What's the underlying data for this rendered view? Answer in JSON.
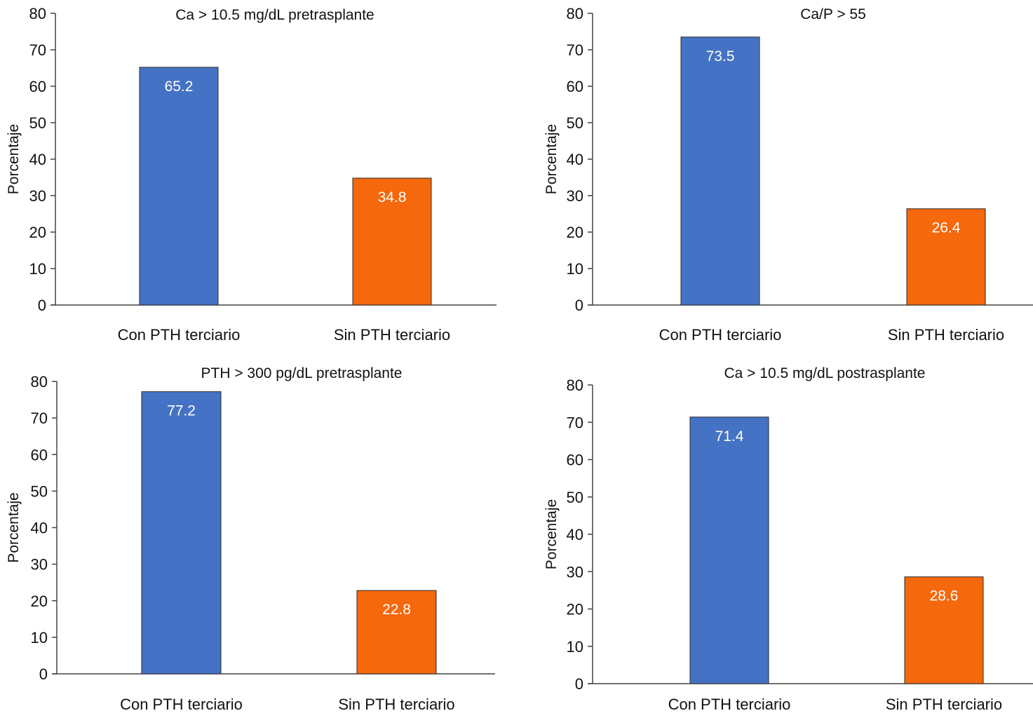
{
  "colors": {
    "series_a": "#4472c4",
    "series_b": "#f5680c",
    "axis": "#444444"
  },
  "chart_data": [
    {
      "type": "bar",
      "title": "Ca > 10.5 mg/dL pretrasplante",
      "xlabel": "",
      "ylabel": "Porcentaje",
      "ylim": [
        0,
        80
      ],
      "yticks": [
        0,
        10,
        20,
        30,
        40,
        50,
        60,
        70,
        80
      ],
      "categories": [
        "Con PTH terciario",
        "Sin PTH terciario"
      ],
      "values": [
        65.2,
        34.8
      ],
      "value_labels": [
        "65.2",
        "34.8"
      ],
      "grid": false,
      "legend": "none"
    },
    {
      "type": "bar",
      "title": "Ca/P > 55",
      "xlabel": "",
      "ylabel": "Porcentaje",
      "ylim": [
        0,
        80
      ],
      "yticks": [
        0,
        10,
        20,
        30,
        40,
        50,
        60,
        70,
        80
      ],
      "categories": [
        "Con PTH terciario",
        "Sin PTH terciario"
      ],
      "values": [
        73.5,
        26.4
      ],
      "value_labels": [
        "73.5",
        "26.4"
      ],
      "grid": false,
      "legend": "none"
    },
    {
      "type": "bar",
      "title": "PTH > 300 pg/dL pretrasplante",
      "xlabel": "",
      "ylabel": "Porcentaje",
      "ylim": [
        0,
        80
      ],
      "yticks": [
        0,
        10,
        20,
        30,
        40,
        50,
        60,
        70,
        80
      ],
      "categories": [
        "Con PTH terciario",
        "Sin PTH terciario"
      ],
      "values": [
        77.2,
        22.8
      ],
      "value_labels": [
        "77.2",
        "22.8"
      ],
      "grid": false,
      "legend": "none"
    },
    {
      "type": "bar",
      "title": "Ca > 10.5 mg/dL postrasplante",
      "xlabel": "",
      "ylabel": "Porcentaje",
      "ylim": [
        0,
        80
      ],
      "yticks": [
        0,
        10,
        20,
        30,
        40,
        50,
        60,
        70,
        80
      ],
      "categories": [
        "Con PTH terciario",
        "Sin PTH terciario"
      ],
      "values": [
        71.4,
        28.6
      ],
      "value_labels": [
        "71.4",
        "28.6"
      ],
      "grid": false,
      "legend": "none"
    }
  ]
}
